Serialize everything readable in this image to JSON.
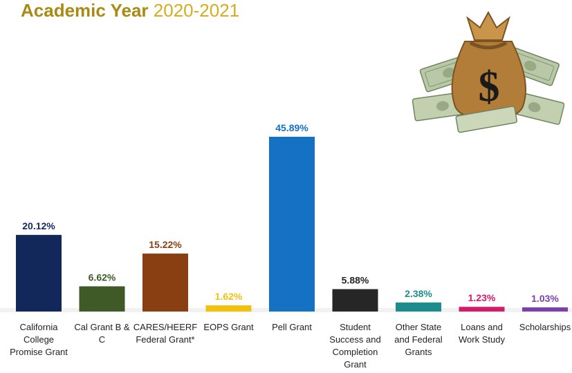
{
  "header": {
    "title_bold": "Academic Year",
    "title_years": "2020-2021"
  },
  "illustration": {
    "icon": "money-bag-icon"
  },
  "chart_data": {
    "type": "bar",
    "categories": [
      "California College Promise Grant",
      "Cal Grant B & C",
      "CARES/HEERF Federal Grant*",
      "EOPS Grant",
      "Pell Grant",
      "Student Success and Completion Grant",
      "Other State and Federal Grants",
      "Loans and Work Study",
      "Scholarships"
    ],
    "category_lines": [
      [
        "California",
        "College",
        "Promise Grant"
      ],
      [
        "Cal Grant B &",
        "C"
      ],
      [
        "CARES/HEERF",
        "Federal Grant*"
      ],
      [
        "EOPS Grant"
      ],
      [
        "Pell Grant"
      ],
      [
        "Student",
        "Success and",
        "Completion",
        "Grant"
      ],
      [
        "Other State",
        "and Federal",
        "Grants"
      ],
      [
        "Loans and",
        "Work Study"
      ],
      [
        "Scholarships"
      ]
    ],
    "values": [
      20.12,
      6.62,
      15.22,
      1.62,
      45.89,
      5.88,
      2.38,
      1.23,
      1.03
    ],
    "data_labels": [
      "20.12%",
      "6.62%",
      "15.22%",
      "1.62%",
      "45.89%",
      "5.88%",
      "2.38%",
      "1.23%",
      "1.03%"
    ],
    "colors": [
      "#13285a",
      "#3f5a26",
      "#8a3f12",
      "#f2c10d",
      "#1571c4",
      "#262626",
      "#1e8c8c",
      "#d61a6a",
      "#7d3fb0"
    ],
    "title": "",
    "xlabel": "",
    "ylabel": "",
    "ylim": [
      0,
      46
    ],
    "grid": false,
    "legend": "none"
  }
}
